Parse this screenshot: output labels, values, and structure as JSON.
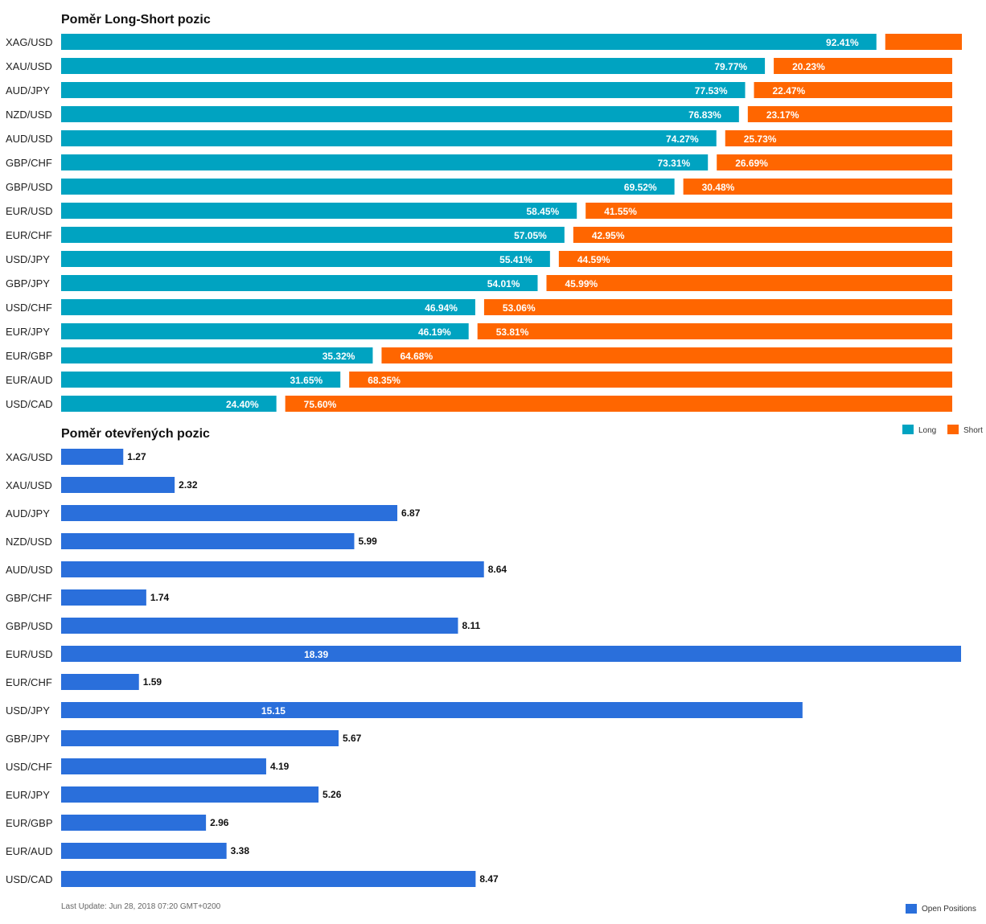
{
  "colors": {
    "long": "#00a3c1",
    "short": "#ff6600",
    "open": "#2a6fdb"
  },
  "chart_data": [
    {
      "type": "bar",
      "orientation": "horizontal",
      "stacked": true,
      "title": "Poměr Long-Short pozic",
      "categories": [
        "XAG/USD",
        "XAU/USD",
        "AUD/JPY",
        "NZD/USD",
        "AUD/USD",
        "GBP/CHF",
        "GBP/USD",
        "EUR/USD",
        "EUR/CHF",
        "USD/JPY",
        "GBP/JPY",
        "USD/CHF",
        "EUR/JPY",
        "EUR/GBP",
        "EUR/AUD",
        "USD/CAD"
      ],
      "series": [
        {
          "name": "Long",
          "values": [
            92.41,
            79.77,
            77.53,
            76.83,
            74.27,
            73.31,
            69.52,
            58.45,
            57.05,
            55.41,
            54.01,
            46.94,
            46.19,
            35.32,
            31.65,
            24.4
          ],
          "labels": [
            "92.41%",
            "79.77%",
            "77.53%",
            "76.83%",
            "74.27%",
            "73.31%",
            "69.52%",
            "58.45%",
            "57.05%",
            "55.41%",
            "54.01%",
            "46.94%",
            "46.19%",
            "35.32%",
            "31.65%",
            "24.40%"
          ]
        },
        {
          "name": "Short",
          "values": [
            7.59,
            20.23,
            22.47,
            23.17,
            25.73,
            26.69,
            30.48,
            41.55,
            42.95,
            44.59,
            45.99,
            53.06,
            53.81,
            64.68,
            68.35,
            75.6
          ],
          "labels": [
            "",
            "20.23%",
            "22.47%",
            "23.17%",
            "25.73%",
            "26.69%",
            "30.48%",
            "41.55%",
            "42.95%",
            "44.59%",
            "45.99%",
            "53.06%",
            "53.81%",
            "64.68%",
            "68.35%",
            "75.60%"
          ]
        }
      ],
      "legend": "bottom-right"
    },
    {
      "type": "bar",
      "orientation": "horizontal",
      "title": "Poměr otevřených pozic",
      "categories": [
        "XAG/USD",
        "XAU/USD",
        "AUD/JPY",
        "NZD/USD",
        "AUD/USD",
        "GBP/CHF",
        "GBP/USD",
        "EUR/USD",
        "EUR/CHF",
        "USD/JPY",
        "GBP/JPY",
        "USD/CHF",
        "EUR/JPY",
        "EUR/GBP",
        "EUR/AUD",
        "USD/CAD"
      ],
      "series": [
        {
          "name": "Open Positions",
          "values": [
            1.27,
            2.32,
            6.87,
            5.99,
            8.64,
            1.74,
            8.11,
            18.39,
            1.59,
            15.15,
            5.67,
            4.19,
            5.26,
            2.96,
            3.38,
            8.47
          ],
          "labels": [
            "1.27",
            "2.32",
            "6.87",
            "5.99",
            "8.64",
            "1.74",
            "8.11",
            "18.39",
            "1.59",
            "15.15",
            "5.67",
            "4.19",
            "5.26",
            "2.96",
            "3.38",
            "8.47"
          ]
        }
      ],
      "legend": "bottom-right"
    }
  ],
  "footer": {
    "last_update": "Last Update: Jun 28, 2018 07:20 GMT+0200"
  }
}
